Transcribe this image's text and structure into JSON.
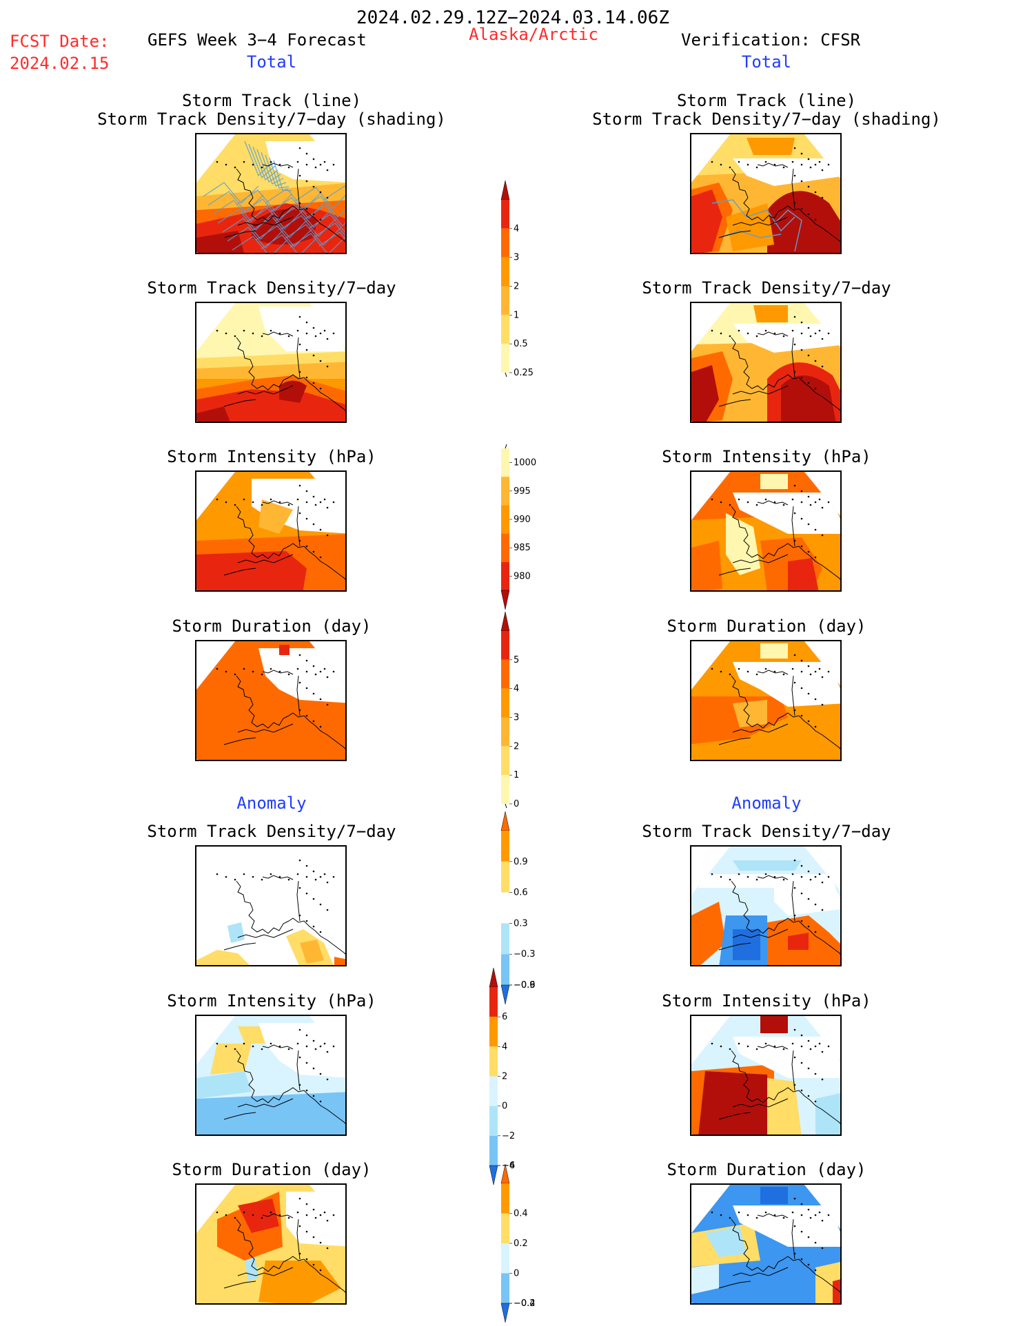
{
  "header": {
    "date_range": "2024.02.29.12Z−2024.03.14.06Z",
    "fcst_label": "FCST Date:",
    "fcst_date": "2024.02.15",
    "left_title": "GEFS Week 3−4 Forecast",
    "region": "Alaska/Arctic",
    "right_title": "Verification: CFSR",
    "left_total": "Total",
    "right_total": "Total",
    "left_anomaly": "Anomaly",
    "right_anomaly": "Anomaly"
  },
  "panel_titles": {
    "track_line": "Storm Track (line)",
    "track_shading": "Storm Track Density/7−day (shading)",
    "density": "Storm Track Density/7−day",
    "intensity": "Storm Intensity (hPa)",
    "duration": "Storm Duration (day)"
  },
  "colorbars": {
    "density": [
      "4",
      "3",
      "2",
      "1",
      "0.5",
      "0.25"
    ],
    "intensity": [
      "1000",
      "995",
      "990",
      "985",
      "980"
    ],
    "duration": [
      "5",
      "4",
      "3",
      "2",
      "1",
      "0"
    ],
    "density_anom": [
      "0.9",
      "0.6",
      "0.3",
      "−0.3",
      "−0.6",
      "−0.9"
    ],
    "intensity_anom": [
      "6",
      "4",
      "2",
      "0",
      "−2",
      "−4",
      "−6"
    ],
    "duration_anom": [
      "0.4",
      "0.2",
      "0",
      "−0.2",
      "−0.4"
    ]
  },
  "colors": {
    "yellow_light": "#fff7b0",
    "yellow": "#ffdd66",
    "orange_light": "#ffb733",
    "orange": "#ff9900",
    "orange_dark": "#ff6a00",
    "red": "#e8260f",
    "dark_red": "#b30f0a",
    "light_blue1": "#d9f4ff",
    "light_blue2": "#aee4f7",
    "blue1": "#78c4f5",
    "blue2": "#3d96ef",
    "blue3": "#1f6fe0",
    "track_line": "#5a9fd6"
  }
}
